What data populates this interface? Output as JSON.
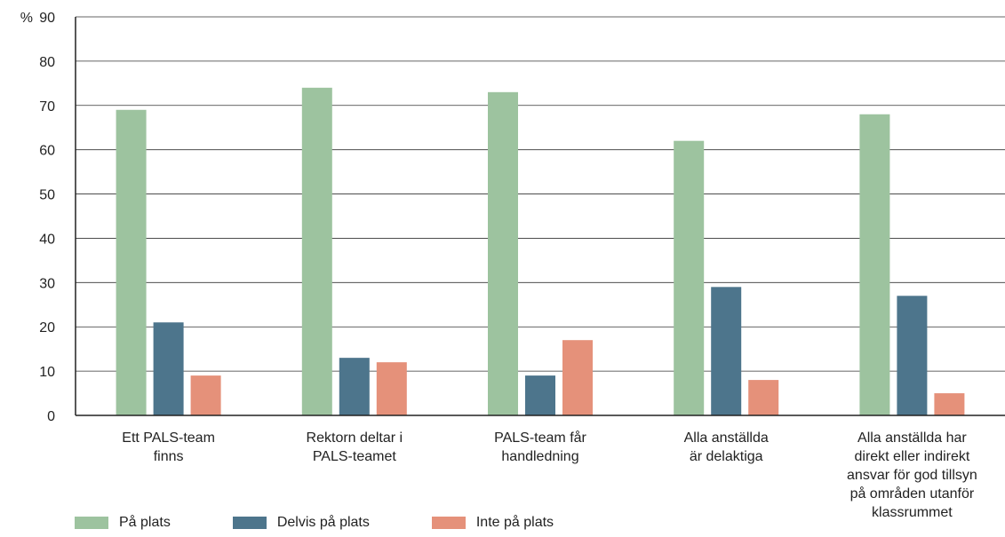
{
  "chart_data": {
    "type": "bar",
    "unit_label": "%",
    "ylim": [
      0,
      90
    ],
    "yticks": [
      0,
      10,
      20,
      30,
      40,
      50,
      60,
      70,
      80,
      90
    ],
    "grid": true,
    "legend_position": "bottom-left",
    "categories": [
      [
        "Ett PALS-team",
        "finns"
      ],
      [
        "Rektorn deltar i",
        "PALS-teamet"
      ],
      [
        "PALS-team får",
        "handledning"
      ],
      [
        "Alla anställda",
        "är delaktiga"
      ],
      [
        "Alla anställda har",
        "direkt eller indirekt",
        "ansvar för god tillsyn",
        "på områden utanför",
        "klassrummet"
      ]
    ],
    "series": [
      {
        "name": "På plats",
        "color": "#9dc39f",
        "values": [
          69,
          74,
          73,
          62,
          68
        ]
      },
      {
        "name": "Delvis på plats",
        "color": "#4d758c",
        "values": [
          21,
          13,
          9,
          29,
          27
        ]
      },
      {
        "name": "Inte på plats",
        "color": "#e5917a",
        "values": [
          9,
          12,
          17,
          8,
          5
        ]
      }
    ]
  }
}
